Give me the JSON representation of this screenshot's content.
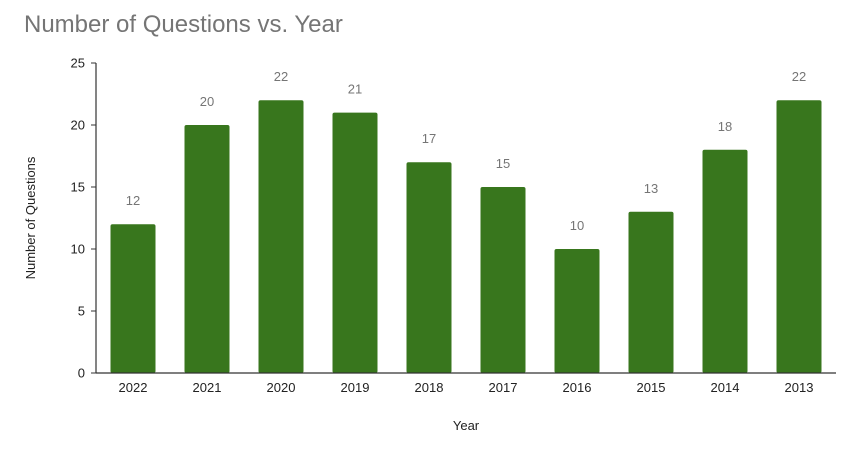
{
  "chart_data": {
    "type": "bar",
    "title": "Number of Questions vs. Year",
    "xlabel": "Year",
    "ylabel": "Number of Questions",
    "categories": [
      "2022",
      "2021",
      "2020",
      "2019",
      "2018",
      "2017",
      "2016",
      "2015",
      "2014",
      "2013"
    ],
    "values": [
      12,
      20,
      22,
      21,
      17,
      15,
      10,
      13,
      18,
      22
    ],
    "ylim": [
      0,
      25
    ],
    "yticks": [
      0,
      5,
      10,
      15,
      20,
      25
    ],
    "grid": false,
    "legend": "none",
    "bar_color": "#38761d",
    "axis_color": "#333333",
    "label_color": "#757575"
  }
}
